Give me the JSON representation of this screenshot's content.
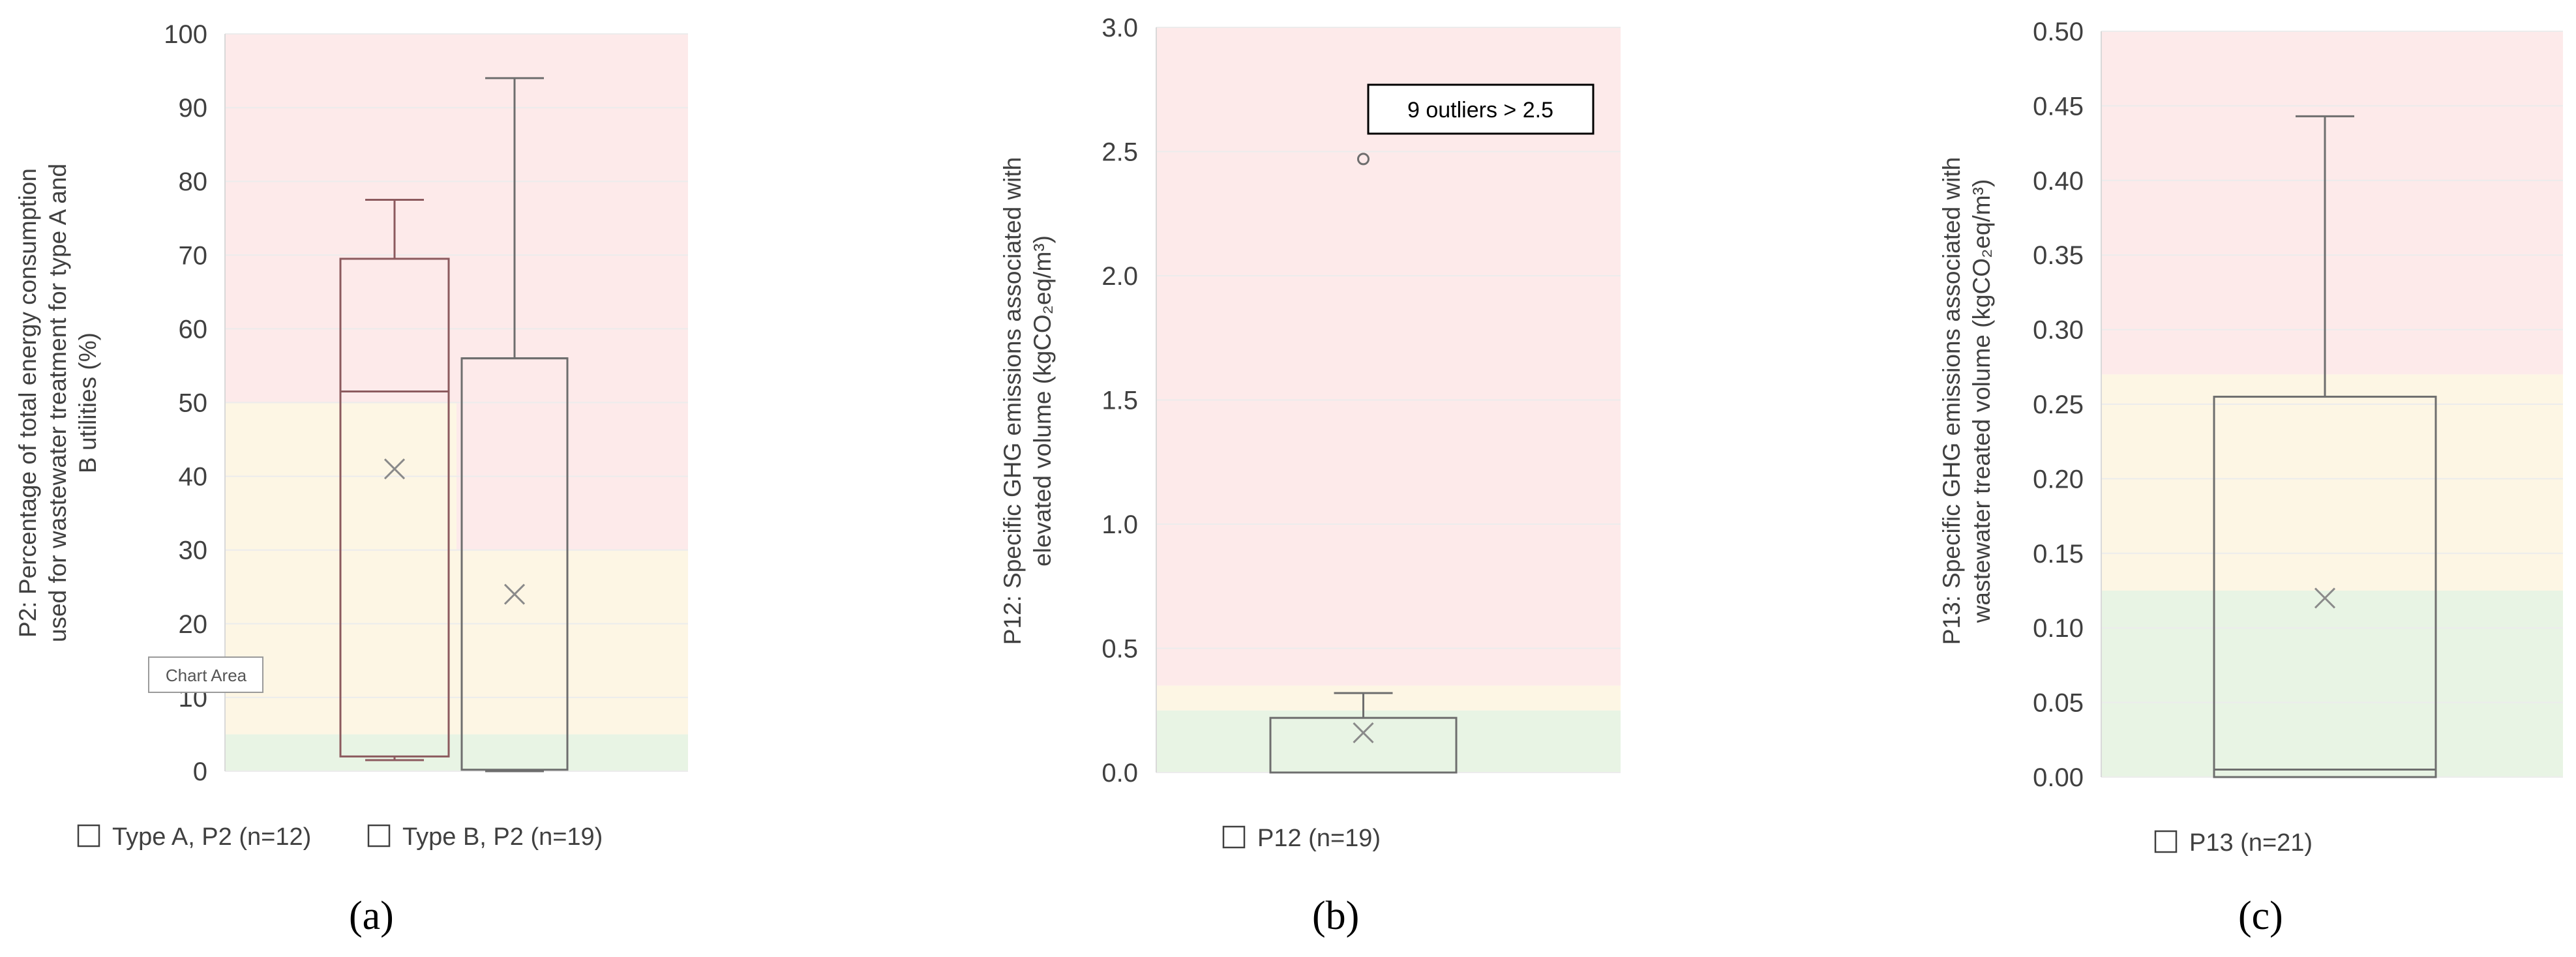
{
  "chart_data": [
    {
      "type": "box",
      "panel_label": "(a)",
      "ylabel_lines": [
        "P2: Percentage of total energy consumption",
        "used for wastewater treatment for type A and",
        "B utilities (%)"
      ],
      "ylim": [
        0,
        100
      ],
      "yticks": [
        "0",
        "10",
        "20",
        "30",
        "40",
        "50",
        "60",
        "70",
        "80",
        "90",
        "100"
      ],
      "bands": [
        {
          "level": "green",
          "color": "#e8f4e4"
        },
        {
          "level": "yellow",
          "color": "#fdf6e4"
        },
        {
          "level": "red",
          "color": "#fdeaea"
        }
      ],
      "band_segments": [
        {
          "color": "#e8f4e4",
          "from": 0,
          "to": 5
        },
        {
          "color": "#fdf6e4",
          "from": 5,
          "to": 50,
          "x_to": 0.5
        },
        {
          "color": "#fdeaea",
          "from": 50,
          "to": 100,
          "x_to": 0.5
        },
        {
          "color": "#fdf6e4",
          "from": 5,
          "to": 30,
          "x_from": 0.5
        },
        {
          "color": "#fdeaea",
          "from": 30,
          "to": 100,
          "x_from": 0.5
        }
      ],
      "series": [
        {
          "name": "Type A, P2 (n=12)",
          "min": 1.5,
          "q1": 2,
          "median": 51.5,
          "q3": 69.5,
          "max": 77.5,
          "mean": 41,
          "outliers": []
        },
        {
          "name": "Type B, P2 (n=19)",
          "min": 0,
          "q1": 0.2,
          "median": 56,
          "q3": 56,
          "max": 94,
          "mean": 24,
          "outliers": []
        }
      ],
      "tooltip": "Chart Area"
    },
    {
      "type": "box",
      "panel_label": "(b)",
      "ylabel_lines": [
        "P12: Specific GHG emissions associated with",
        "elevated volume (kgCO₂eq/m³)"
      ],
      "ylim": [
        0,
        3.0
      ],
      "yticks": [
        "0.0",
        "0.5",
        "1.0",
        "1.5",
        "2.0",
        "2.5",
        "3.0"
      ],
      "band_segments": [
        {
          "color": "#e8f4e4",
          "from": 0,
          "to": 0.25
        },
        {
          "color": "#fdf6e4",
          "from": 0.25,
          "to": 0.35
        },
        {
          "color": "#fdeaea",
          "from": 0.35,
          "to": 3.0
        }
      ],
      "series": [
        {
          "name": "P12 (n=19)",
          "min": 0,
          "q1": 0,
          "median": 0,
          "q3": 0.22,
          "max": 0.32,
          "mean": 0.16,
          "outliers": [
            2.47
          ]
        }
      ],
      "annotation": "9 outliers > 2.5"
    },
    {
      "type": "box",
      "panel_label": "(c)",
      "ylabel_lines": [
        "P13: Specific GHG emissions associated with",
        "wastewater treated volume (kgCO₂eq/m³)"
      ],
      "ylim": [
        0,
        0.5
      ],
      "yticks": [
        "0.00",
        "0.05",
        "0.10",
        "0.15",
        "0.20",
        "0.25",
        "0.30",
        "0.35",
        "0.40",
        "0.45",
        "0.50"
      ],
      "band_segments": [
        {
          "color": "#e8f4e4",
          "from": 0,
          "to": 0.125
        },
        {
          "color": "#fdf6e4",
          "from": 0.125,
          "to": 0.27
        },
        {
          "color": "#fdeaea",
          "from": 0.27,
          "to": 0.5
        }
      ],
      "series": [
        {
          "name": "P13 (n=21)",
          "min": 0,
          "q1": 0,
          "median": 0.005,
          "q3": 0.255,
          "max": 0.443,
          "mean": 0.12,
          "outliers": []
        }
      ]
    }
  ],
  "colors": {
    "box_stroke": "#8c5a5e",
    "box_stroke_b": "#6e6e6e",
    "mean_marker": "#8a8a8a",
    "grid": "#ececec"
  }
}
